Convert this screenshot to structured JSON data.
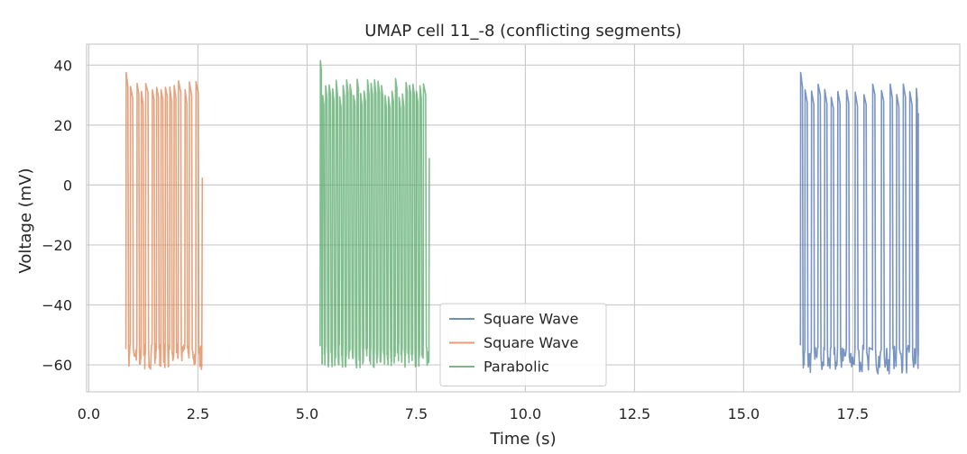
{
  "chart_data": {
    "type": "line",
    "title": "UMAP cell 11_-8 (conflicting segments)",
    "xlabel": "Time (s)",
    "ylabel": "Voltage (mV)",
    "xlim": [
      -0.05,
      19.95
    ],
    "ylim": [
      -69,
      47
    ],
    "xticks": [
      0.0,
      2.5,
      5.0,
      7.5,
      10.0,
      12.5,
      15.0,
      17.5
    ],
    "xtick_labels": [
      "0.0",
      "2.5",
      "5.0",
      "7.5",
      "10.0",
      "12.5",
      "15.0",
      "17.5"
    ],
    "yticks": [
      40,
      20,
      0,
      -20,
      -40,
      -60
    ],
    "ytick_labels": [
      "40",
      "20",
      "0",
      "−20",
      "−40",
      "−60"
    ],
    "grid": true,
    "legend_position": "lower-center",
    "series": [
      {
        "name": "Square Wave",
        "color": "#4c72b0",
        "start": 16.3,
        "end": 19.0,
        "peak_max": 37.5,
        "peak_min": 29.0,
        "trough_max": -53.5,
        "trough_min": -63.0,
        "end_value": 24.0,
        "spike_times": [
          16.3,
          16.4,
          16.55,
          16.7,
          16.85,
          17.0,
          17.15,
          17.35,
          17.55,
          17.75,
          17.95,
          18.15,
          18.35,
          18.5,
          18.65,
          18.8,
          18.95
        ]
      },
      {
        "name": "Square Wave",
        "color": "#dd8452",
        "start": 0.8,
        "end": 2.6,
        "peak_max": 37.5,
        "peak_min": 31.0,
        "trough_max": -53.0,
        "trough_min": -61.5,
        "end_value": 2.5,
        "spike_times": [
          0.85,
          0.95,
          1.1,
          1.2,
          1.3,
          1.45,
          1.55,
          1.65,
          1.75,
          1.85,
          1.95,
          2.05,
          2.2,
          2.3,
          2.45
        ]
      },
      {
        "name": "Parabolic",
        "color": "#55a868",
        "start": 5.3,
        "end": 7.8,
        "peak_max": 41.5,
        "peak_min": 29.0,
        "trough_max": -53.0,
        "trough_min": -61.0,
        "end_value": 9.0,
        "spike_times": [
          5.3,
          5.35,
          5.42,
          5.5,
          5.58,
          5.66,
          5.74,
          5.82,
          5.9,
          5.98,
          6.06,
          6.14,
          6.22,
          6.3,
          6.38,
          6.46,
          6.54,
          6.62,
          6.7,
          6.78,
          6.86,
          6.94,
          7.02,
          7.1,
          7.18,
          7.26,
          7.34,
          7.42,
          7.5,
          7.58,
          7.66
        ]
      }
    ]
  }
}
